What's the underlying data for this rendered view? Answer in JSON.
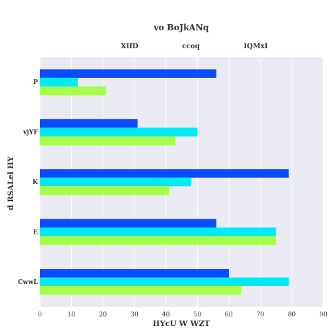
{
  "chart_data": {
    "type": "bar",
    "orientation": "horizontal",
    "title": "vo  BoJkANq",
    "xlabel": "HYcU W  WZT",
    "ylabel": "d RSALel HY",
    "categories": [
      "P",
      "vjYF",
      "K",
      "E",
      "CwwL"
    ],
    "series": [
      {
        "name": "XIfD",
        "color": "#0a4dff",
        "values": [
          56,
          31,
          79,
          56,
          60
        ]
      },
      {
        "name": "ccoq",
        "color": "#00eaf5",
        "values": [
          12,
          50,
          48,
          75,
          79
        ]
      },
      {
        "name": "IQMxI",
        "color": "#a6ff4d",
        "values": [
          21,
          43,
          41,
          75,
          64
        ]
      }
    ],
    "xlim": [
      0,
      90
    ],
    "xticks": [
      0,
      10,
      20,
      30,
      40,
      50,
      60,
      70,
      80,
      90
    ],
    "grid": true,
    "legend_position": "top",
    "plot_background": "#eaeaf2"
  }
}
